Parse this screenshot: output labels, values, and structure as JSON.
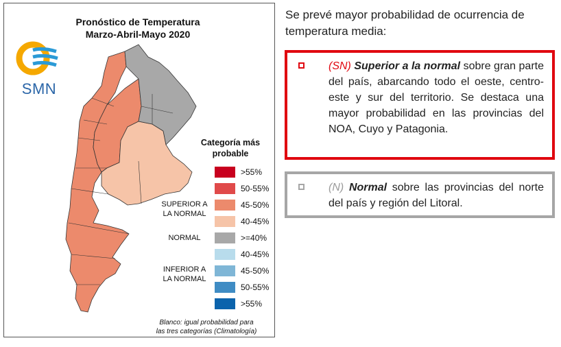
{
  "map": {
    "title_line1": "Pronóstico de Temperatura",
    "title_line2": "Marzo-Abril-Mayo 2020",
    "logo_text": "SMN",
    "logo_colors": {
      "sun": "#f5a800",
      "waves": "#2b9ad6",
      "text": "#2b66a8"
    },
    "legend_title_line1": "Categoría más",
    "legend_title_line2": "probable",
    "legend": [
      {
        "label": ">55%",
        "color": "#c8001e"
      },
      {
        "label": "50-55%",
        "color": "#e04a4a"
      },
      {
        "label": "45-50%",
        "color": "#ec8a6c"
      },
      {
        "label": "40-45%",
        "color": "#f6c4a8"
      },
      {
        "label": ">=40%",
        "color": "#a8a8a8"
      },
      {
        "label": "40-45%",
        "color": "#b8dcec"
      },
      {
        "label": "45-50%",
        "color": "#7fb6d6"
      },
      {
        "label": "50-55%",
        "color": "#3f8cc4"
      },
      {
        "label": ">55%",
        "color": "#0b63ac"
      }
    ],
    "group_superior_line1": "SUPERIOR A",
    "group_superior_line2": "LA NORMAL",
    "group_normal": "NORMAL",
    "group_inferior_line1": "INFERIOR A",
    "group_inferior_line2": "LA NORMAL",
    "footnote_line1": "Blanco: igual probabilidad para",
    "footnote_line2": "las tres categorías (Climatología)"
  },
  "intro_text": "Se prevé mayor probabilidad de ocurrencia de temperatura media:",
  "box_sn": {
    "border_color": "#e0060f",
    "tag": "(SN)",
    "title": "Superior a la normal",
    "text": "sobre gran parte del país, abarcando todo el oeste, centro-este y sur del territorio. Se destaca una mayor probabilidad en las provincias del NOA, Cuyo y Patagonia."
  },
  "box_n": {
    "border_color": "#a6a6a6",
    "tag": "(N)",
    "title": "Normal",
    "text": "sobre las provincias del norte del país y región del Litoral."
  }
}
